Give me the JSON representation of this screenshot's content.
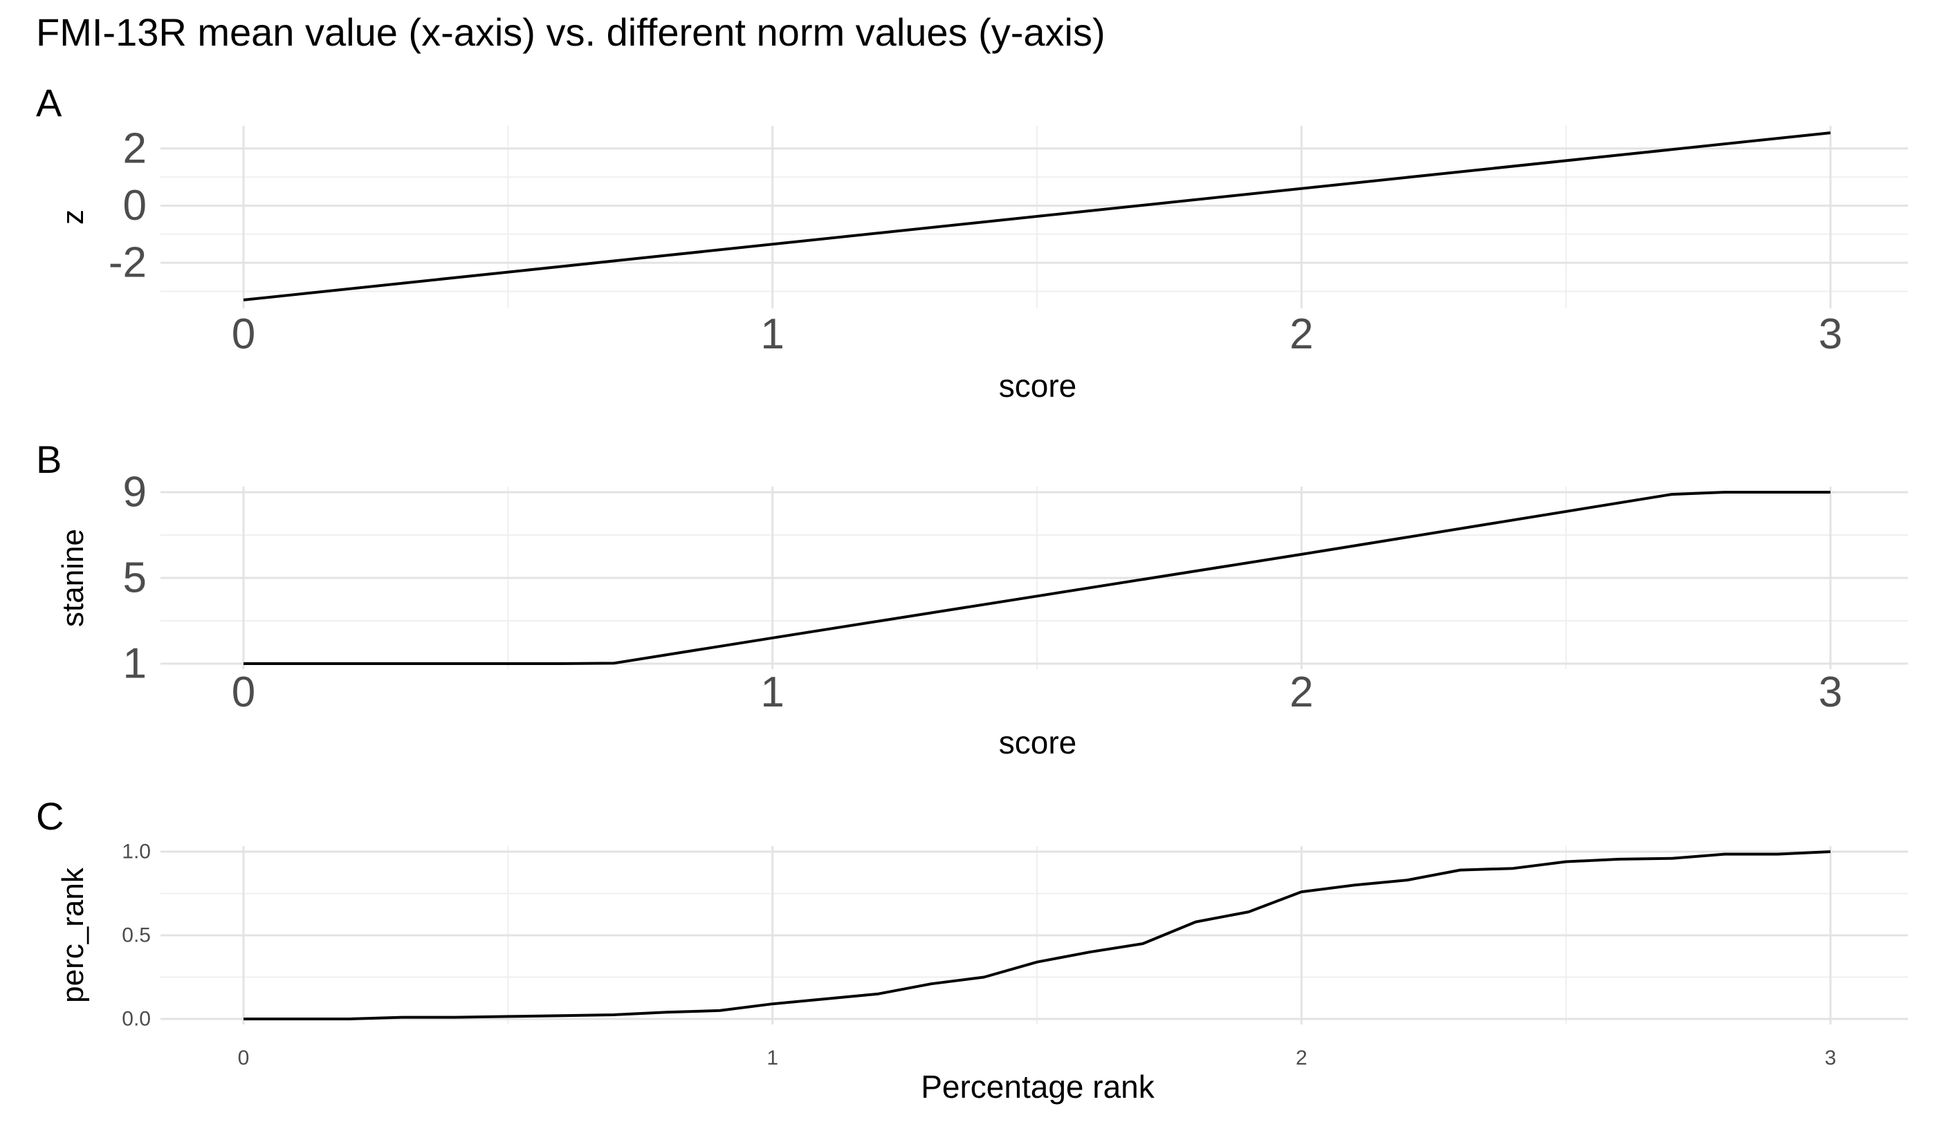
{
  "title": "FMI-13R mean value (x-axis) vs. different norm values (y-axis)",
  "colors": {
    "line": "#000000",
    "grid_major": "#e3e3e3",
    "grid_minor": "#efefef",
    "tick_text": "#4d4d4d",
    "label_text": "#000000"
  },
  "chart_data": [
    {
      "type": "line",
      "panel": "A",
      "xlabel": "score",
      "ylabel": "z",
      "xlim": [
        -0.15,
        3.15
      ],
      "ylim": [
        -3.4,
        2.6
      ],
      "xticks": [
        0,
        1,
        2,
        3
      ],
      "xtick_labels": [
        "0",
        "1",
        "2",
        "3"
      ],
      "yticks": [
        -2,
        0,
        2
      ],
      "ytick_labels": [
        "-2",
        "0",
        "2"
      ],
      "grid": true,
      "x": [
        0,
        3
      ],
      "y": [
        -3.3,
        2.55
      ]
    },
    {
      "type": "line",
      "panel": "B",
      "xlabel": "score",
      "ylabel": "stanine",
      "xlim": [
        -0.15,
        3.15
      ],
      "ylim": [
        1,
        9
      ],
      "xticks": [
        0,
        1,
        2,
        3
      ],
      "xtick_labels": [
        "0",
        "1",
        "2",
        "3"
      ],
      "yticks": [
        1,
        5,
        9
      ],
      "ytick_labels": [
        "1",
        "5",
        "9"
      ],
      "grid": true,
      "x": [
        0,
        0.6,
        0.7,
        1.0,
        2.0,
        2.7,
        2.8,
        3.0
      ],
      "y": [
        1,
        1,
        1.02,
        2.2,
        6.1,
        8.9,
        9,
        9
      ]
    },
    {
      "type": "line",
      "panel": "C",
      "xlabel": "Percentage rank",
      "ylabel": "perc_rank",
      "xlim": [
        -0.15,
        3.15
      ],
      "ylim": [
        0,
        1
      ],
      "xticks": [
        0,
        1,
        2,
        3
      ],
      "xtick_labels": [
        "0",
        "1",
        "2",
        "3"
      ],
      "yticks": [
        0,
        0.5,
        1
      ],
      "ytick_labels": [
        "0.0",
        "0.5",
        "1.0"
      ],
      "grid": true,
      "x": [
        0,
        0.2,
        0.3,
        0.4,
        0.5,
        0.6,
        0.7,
        0.8,
        0.9,
        1.0,
        1.1,
        1.2,
        1.3,
        1.4,
        1.5,
        1.6,
        1.7,
        1.8,
        1.9,
        2.0,
        2.1,
        2.2,
        2.3,
        2.4,
        2.5,
        2.6,
        2.7,
        2.8,
        2.9,
        3.0
      ],
      "y": [
        0,
        0,
        0.01,
        0.01,
        0.015,
        0.02,
        0.025,
        0.04,
        0.05,
        0.09,
        0.12,
        0.15,
        0.21,
        0.25,
        0.34,
        0.4,
        0.45,
        0.58,
        0.64,
        0.76,
        0.8,
        0.83,
        0.89,
        0.9,
        0.94,
        0.955,
        0.96,
        0.985,
        0.985,
        1.0
      ]
    }
  ]
}
